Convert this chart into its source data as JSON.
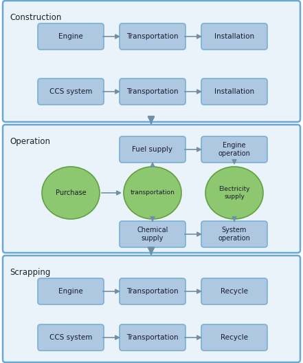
{
  "fig_width": 4.41,
  "fig_height": 5.27,
  "dpi": 100,
  "bg_color": "#ffffff",
  "section_border_color": "#6aa8d4",
  "section_fill_color": "#eaf3fa",
  "box_fill_color": "#adc8e0",
  "box_edge_color": "#7aafd4",
  "circle_fill_color": "#8dc870",
  "circle_edge_color": "#60a040",
  "arrow_color": "#7090a8",
  "text_color": "#1a1a2e",
  "section_label_color": "#222222",
  "construction_label": "Construction",
  "operation_label": "Operation",
  "scrapping_label": "Scrapping",
  "construction_row1": [
    "Engine",
    "Transportation",
    "Installation"
  ],
  "construction_row2": [
    "CCS system",
    "Transportation",
    "Installation"
  ],
  "operation_boxes_top": [
    "Fuel supply",
    "Engine\noperation"
  ],
  "operation_circles": [
    "Purchase",
    "transportation",
    "Electricity\nsupply"
  ],
  "operation_boxes_bottom": [
    "Chemical\nsupply",
    "System\noperation"
  ],
  "scrapping_row1": [
    "Engine",
    "Transportation",
    "Recycle"
  ],
  "scrapping_row2": [
    "CCS system",
    "Transportation",
    "Recycle"
  ]
}
